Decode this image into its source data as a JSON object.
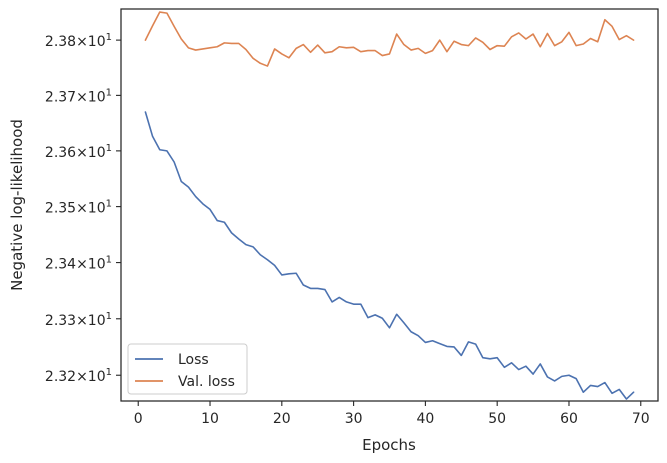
{
  "chart_data": {
    "type": "line",
    "title": "",
    "xlabel": "Epochs",
    "ylabel": "Negative log-likelihood",
    "xlim": [
      -2.4,
      72.4
    ],
    "ylim": [
      23.1545,
      23.8565
    ],
    "y_scale": "log",
    "grid": false,
    "legend_position": "lower-left",
    "x_ticks": [
      0,
      10,
      20,
      30,
      40,
      50,
      60,
      70
    ],
    "x_tick_labels": [
      "0",
      "10",
      "20",
      "30",
      "40",
      "50",
      "60",
      "70"
    ],
    "y_ticks": [
      23.2,
      23.3,
      23.4,
      23.5,
      23.6,
      23.7,
      23.8
    ],
    "y_tick_mantissas": [
      "2.32",
      "2.33",
      "2.34",
      "2.35",
      "2.36",
      "2.37",
      "2.38"
    ],
    "y_tick_base": "10",
    "y_tick_exponent": "1",
    "x": [
      1,
      2,
      3,
      4,
      5,
      6,
      7,
      8,
      9,
      10,
      11,
      12,
      13,
      14,
      15,
      16,
      17,
      18,
      19,
      20,
      21,
      22,
      23,
      24,
      25,
      26,
      27,
      28,
      29,
      30,
      31,
      32,
      33,
      34,
      35,
      36,
      37,
      38,
      39,
      40,
      41,
      42,
      43,
      44,
      45,
      46,
      47,
      48,
      49,
      50,
      51,
      52,
      53,
      54,
      55,
      56,
      57,
      58,
      59,
      60,
      61,
      62,
      63,
      64,
      65,
      66,
      67,
      68,
      69
    ],
    "series": [
      {
        "name": "Loss",
        "color": "#4c72b0",
        "values": [
          23.67,
          23.626,
          23.602,
          23.6,
          23.58,
          23.545,
          23.535,
          23.518,
          23.505,
          23.495,
          23.475,
          23.472,
          23.453,
          23.442,
          23.432,
          23.428,
          23.414,
          23.405,
          23.395,
          23.378,
          23.38,
          23.381,
          23.36,
          23.354,
          23.354,
          23.352,
          23.33,
          23.338,
          23.33,
          23.326,
          23.326,
          23.302,
          23.307,
          23.301,
          23.284,
          23.308,
          23.293,
          23.277,
          23.27,
          23.258,
          23.261,
          23.256,
          23.251,
          23.25,
          23.235,
          23.259,
          23.255,
          23.231,
          23.229,
          23.231,
          23.214,
          23.222,
          23.21,
          23.216,
          23.202,
          23.22,
          23.197,
          23.19,
          23.198,
          23.2,
          23.194,
          23.17,
          23.182,
          23.18,
          23.187,
          23.168,
          23.175,
          23.158,
          23.17
        ]
      },
      {
        "name": "Val. loss",
        "color": "#dd8452",
        "values": [
          23.8,
          23.826,
          23.851,
          23.849,
          23.825,
          23.802,
          23.786,
          23.782,
          23.784,
          23.786,
          23.788,
          23.795,
          23.794,
          23.794,
          23.783,
          23.767,
          23.758,
          23.753,
          23.784,
          23.775,
          23.768,
          23.785,
          23.792,
          23.778,
          23.791,
          23.777,
          23.779,
          23.788,
          23.786,
          23.787,
          23.779,
          23.781,
          23.781,
          23.772,
          23.775,
          23.811,
          23.792,
          23.782,
          23.785,
          23.776,
          23.781,
          23.8,
          23.779,
          23.798,
          23.792,
          23.79,
          23.804,
          23.796,
          23.783,
          23.79,
          23.789,
          23.806,
          23.813,
          23.802,
          23.811,
          23.788,
          23.812,
          23.79,
          23.797,
          23.814,
          23.79,
          23.793,
          23.803,
          23.797,
          23.837,
          23.825,
          23.801,
          23.808,
          23.8
        ]
      }
    ]
  }
}
